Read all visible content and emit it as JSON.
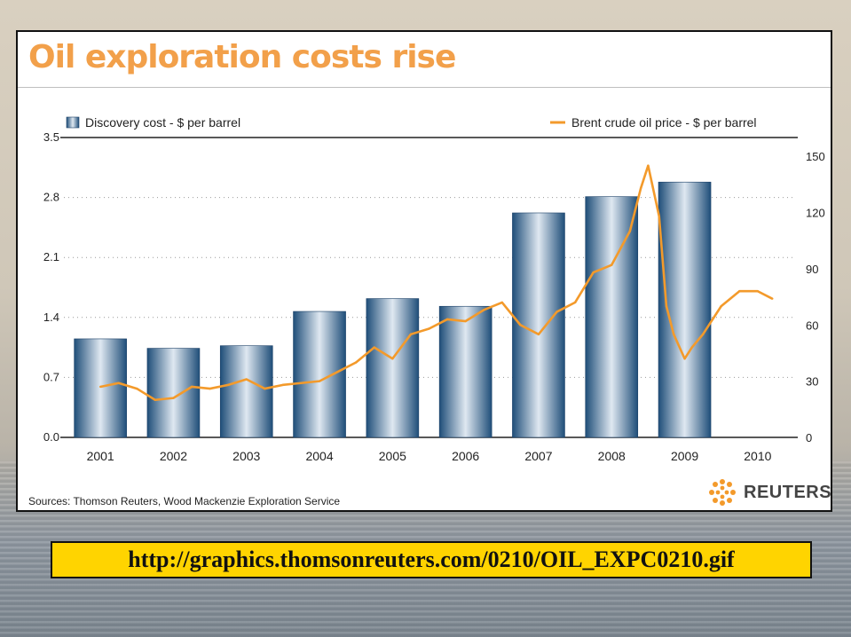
{
  "slide": {
    "title": "Oil exploration costs rise",
    "source": "Sources: Thomson Reuters, Wood Mackenzie Exploration Service",
    "brand": "REUTERS",
    "url": "http://graphics.thomsonreuters.com/0210/OIL_EXPC0210.gif"
  },
  "colors": {
    "title": "#f2a04a",
    "bar_dark": "#1f4e79",
    "bar_light": "#dfe8f1",
    "line": "#f39a2b",
    "url_box": "#ffd400",
    "brand_icon": "#f39a2b"
  },
  "chart_data": {
    "type": "bar",
    "categories": [
      "2001",
      "2002",
      "2003",
      "2004",
      "2005",
      "2006",
      "2007",
      "2008",
      "2009",
      "2010"
    ],
    "grid": true,
    "legend_position": "top",
    "y_left": {
      "ylim": [
        0,
        3.5
      ],
      "ticks": [
        "3.5",
        "2.8",
        "2.1",
        "1.4",
        "0.7",
        "0.0"
      ],
      "tick_values": [
        3.5,
        2.8,
        2.1,
        1.4,
        0.7,
        0.0
      ]
    },
    "y_right": {
      "ylim": [
        0,
        160
      ],
      "ticks": [
        "150",
        "120",
        "90",
        "60",
        "30",
        "0"
      ],
      "tick_values": [
        150,
        120,
        90,
        60,
        30,
        0
      ]
    },
    "series": [
      {
        "name": "Discovery cost - $ per barrel",
        "type": "bar",
        "axis": "left",
        "values": [
          1.15,
          1.04,
          1.07,
          1.47,
          1.62,
          1.53,
          2.62,
          2.81,
          2.98,
          null
        ]
      },
      {
        "name": "Brent crude oil price - $ per barrel",
        "type": "line",
        "axis": "right",
        "x": [
          2001.0,
          2001.25,
          2001.5,
          2001.75,
          2002.0,
          2002.25,
          2002.5,
          2002.75,
          2003.0,
          2003.25,
          2003.5,
          2003.75,
          2004.0,
          2004.25,
          2004.5,
          2004.75,
          2005.0,
          2005.25,
          2005.5,
          2005.75,
          2006.0,
          2006.25,
          2006.5,
          2006.75,
          2007.0,
          2007.25,
          2007.5,
          2007.75,
          2008.0,
          2008.25,
          2008.4,
          2008.5,
          2008.65,
          2008.75,
          2008.85,
          2009.0,
          2009.1,
          2009.25,
          2009.5,
          2009.75,
          2010.0,
          2010.2
        ],
        "values": [
          27,
          29,
          26,
          20,
          21,
          27,
          26,
          28,
          31,
          26,
          28,
          29,
          30,
          35,
          40,
          48,
          42,
          55,
          58,
          63,
          62,
          68,
          72,
          60,
          55,
          67,
          72,
          88,
          92,
          110,
          133,
          145,
          118,
          70,
          55,
          42,
          48,
          55,
          70,
          78,
          78,
          74
        ]
      }
    ]
  }
}
